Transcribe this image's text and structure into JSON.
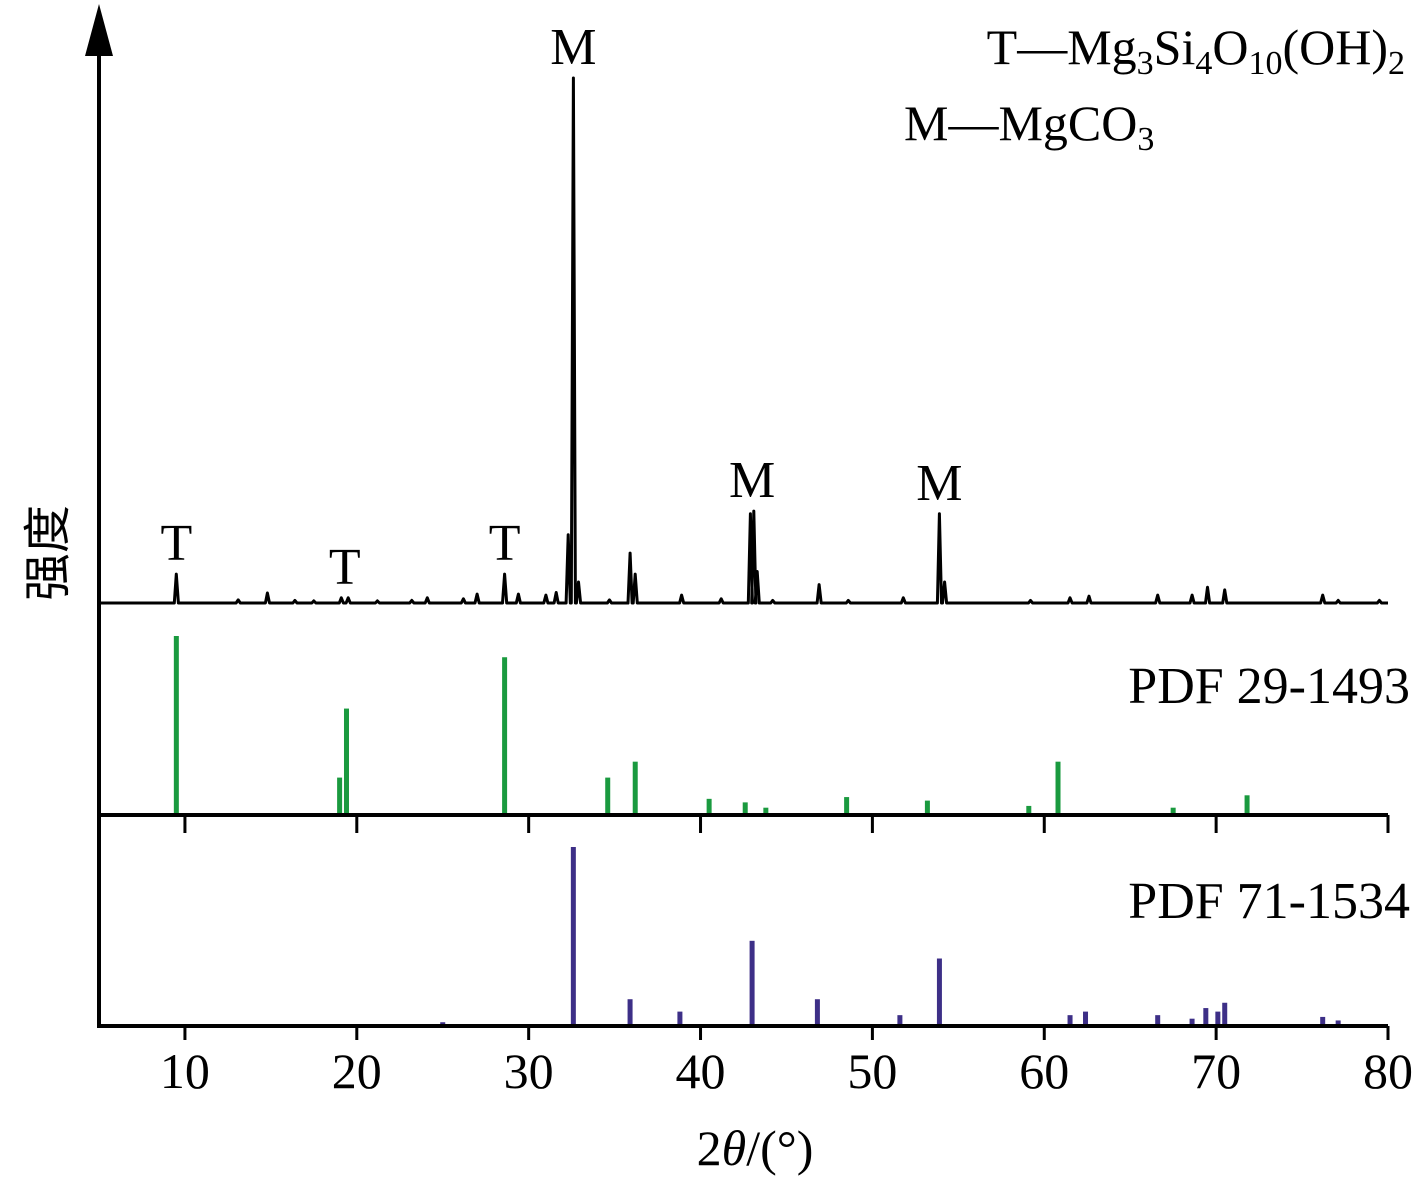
{
  "chart_data": {
    "type": "line",
    "xlabel_prefix": "2",
    "xlabel_symbol": "θ",
    "xlabel_suffix": "/(°)",
    "ylabel": "强度",
    "xlim": [
      5,
      80
    ],
    "xticks": [
      10,
      20,
      30,
      40,
      50,
      60,
      70,
      80
    ],
    "legend": [
      {
        "symbol": "T",
        "dash": "—",
        "formula": "Mg3Si4O10(OH)2"
      },
      {
        "symbol": "M",
        "dash": "—",
        "formula": "MgCO3"
      }
    ],
    "sample": {
      "baseline": 0,
      "peaks": [
        {
          "x": 9.5,
          "y": 5.5
        },
        {
          "x": 13.1,
          "y": 0.6
        },
        {
          "x": 14.8,
          "y": 1.9
        },
        {
          "x": 16.4,
          "y": 0.5
        },
        {
          "x": 17.5,
          "y": 0.4
        },
        {
          "x": 19.1,
          "y": 1.0
        },
        {
          "x": 19.5,
          "y": 1.0
        },
        {
          "x": 21.2,
          "y": 0.4
        },
        {
          "x": 23.2,
          "y": 0.5
        },
        {
          "x": 24.1,
          "y": 1.0
        },
        {
          "x": 26.2,
          "y": 0.8
        },
        {
          "x": 27.0,
          "y": 1.7
        },
        {
          "x": 28.6,
          "y": 5.5
        },
        {
          "x": 29.4,
          "y": 1.7
        },
        {
          "x": 31.0,
          "y": 1.5
        },
        {
          "x": 31.6,
          "y": 2.0
        },
        {
          "x": 32.3,
          "y": 13.0
        },
        {
          "x": 32.6,
          "y": 100.0
        },
        {
          "x": 32.9,
          "y": 4.0
        },
        {
          "x": 34.7,
          "y": 0.6
        },
        {
          "x": 35.9,
          "y": 9.5
        },
        {
          "x": 36.2,
          "y": 5.5
        },
        {
          "x": 38.9,
          "y": 1.5
        },
        {
          "x": 41.2,
          "y": 0.8
        },
        {
          "x": 42.9,
          "y": 17.0
        },
        {
          "x": 43.1,
          "y": 17.5
        },
        {
          "x": 43.3,
          "y": 6.0
        },
        {
          "x": 44.2,
          "y": 0.5
        },
        {
          "x": 46.9,
          "y": 3.5
        },
        {
          "x": 48.6,
          "y": 0.5
        },
        {
          "x": 51.8,
          "y": 1.0
        },
        {
          "x": 53.9,
          "y": 17.0
        },
        {
          "x": 54.2,
          "y": 4.0
        },
        {
          "x": 59.2,
          "y": 0.5
        },
        {
          "x": 61.5,
          "y": 1.0
        },
        {
          "x": 62.6,
          "y": 1.3
        },
        {
          "x": 66.6,
          "y": 1.5
        },
        {
          "x": 68.6,
          "y": 1.5
        },
        {
          "x": 69.5,
          "y": 3.0
        },
        {
          "x": 70.5,
          "y": 2.5
        },
        {
          "x": 76.2,
          "y": 1.5
        },
        {
          "x": 77.1,
          "y": 0.5
        },
        {
          "x": 79.5,
          "y": 0.5
        }
      ],
      "annotations": [
        {
          "label": "T",
          "x": 9.5
        },
        {
          "label": "T",
          "x": 19.3
        },
        {
          "label": "T",
          "x": 28.6
        },
        {
          "label": "M",
          "x": 32.6
        },
        {
          "label": "M",
          "x": 43.0
        },
        {
          "label": "M",
          "x": 53.9
        }
      ]
    },
    "references": [
      {
        "name": "PDF 29-1493",
        "color": "#1a9a3f",
        "sticks": [
          {
            "x": 9.5,
            "y": 100
          },
          {
            "x": 19.0,
            "y": 20
          },
          {
            "x": 19.4,
            "y": 59
          },
          {
            "x": 28.6,
            "y": 88
          },
          {
            "x": 34.6,
            "y": 20
          },
          {
            "x": 36.2,
            "y": 29
          },
          {
            "x": 40.5,
            "y": 8
          },
          {
            "x": 42.6,
            "y": 6
          },
          {
            "x": 43.8,
            "y": 3
          },
          {
            "x": 48.5,
            "y": 9
          },
          {
            "x": 53.2,
            "y": 7
          },
          {
            "x": 59.1,
            "y": 4
          },
          {
            "x": 60.8,
            "y": 29
          },
          {
            "x": 67.5,
            "y": 3
          },
          {
            "x": 71.8,
            "y": 10
          }
        ]
      },
      {
        "name": "PDF 71-1534",
        "color": "#3d2f87",
        "sticks": [
          {
            "x": 25.0,
            "y": 1
          },
          {
            "x": 32.6,
            "y": 100
          },
          {
            "x": 35.9,
            "y": 14
          },
          {
            "x": 38.8,
            "y": 7
          },
          {
            "x": 43.0,
            "y": 47
          },
          {
            "x": 46.8,
            "y": 14
          },
          {
            "x": 51.6,
            "y": 5
          },
          {
            "x": 53.9,
            "y": 37
          },
          {
            "x": 61.5,
            "y": 5
          },
          {
            "x": 62.4,
            "y": 7
          },
          {
            "x": 66.6,
            "y": 5
          },
          {
            "x": 68.6,
            "y": 3
          },
          {
            "x": 69.4,
            "y": 9
          },
          {
            "x": 70.1,
            "y": 7
          },
          {
            "x": 70.5,
            "y": 12
          },
          {
            "x": 76.2,
            "y": 4
          },
          {
            "x": 77.1,
            "y": 2
          }
        ]
      }
    ]
  }
}
